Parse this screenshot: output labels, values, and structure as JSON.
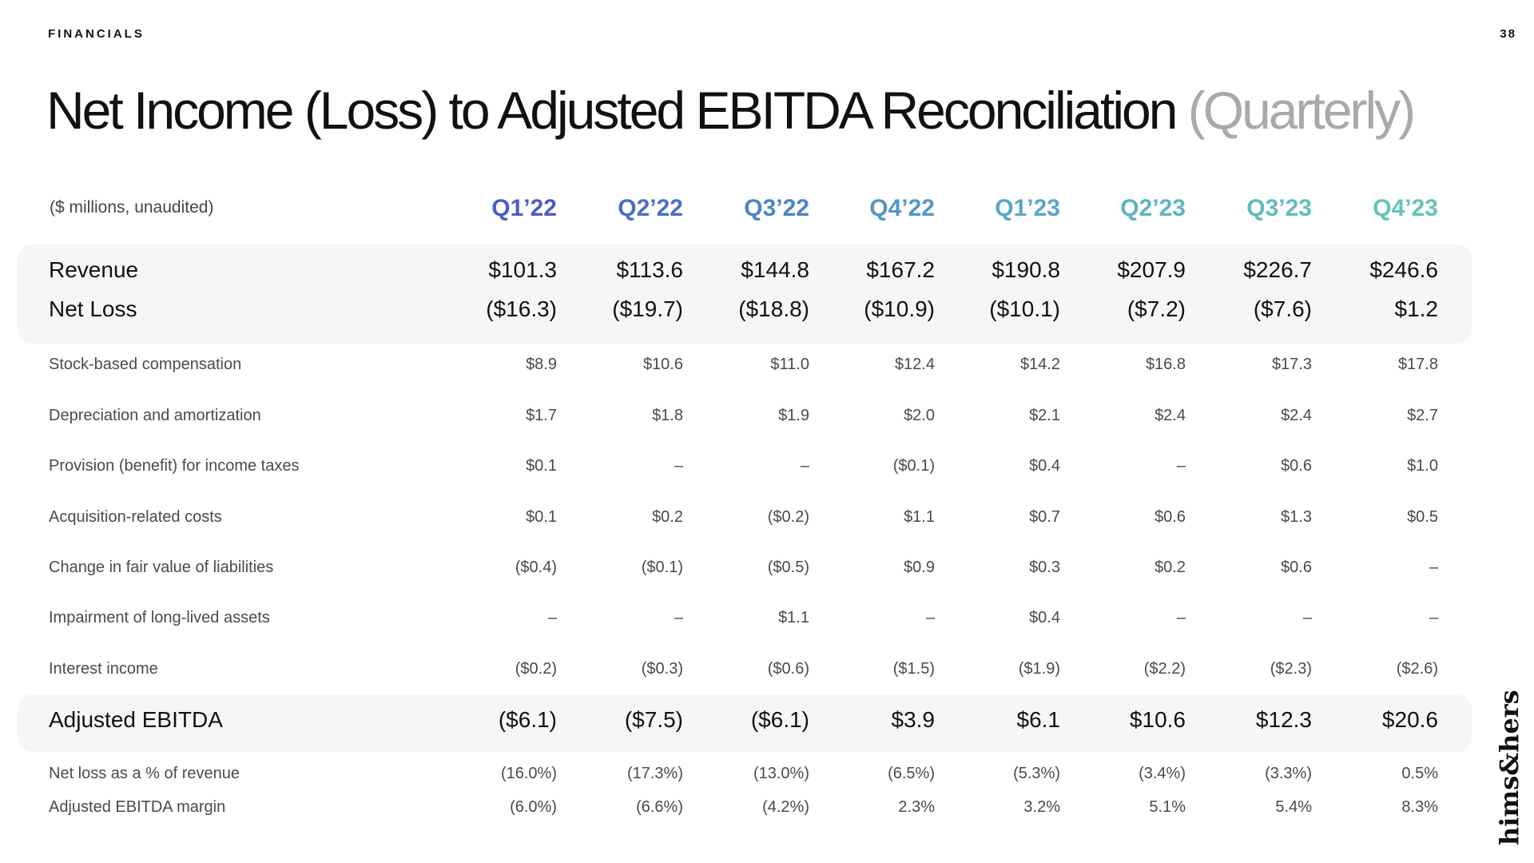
{
  "header": {
    "section_label": "FINANCIALS",
    "page_number": "38"
  },
  "title": {
    "main": "Net Income (Loss) to Adjusted EBITDA Reconciliation",
    "suffix": "(Quarterly)"
  },
  "table": {
    "units_note": "($ millions, unaudited)",
    "columns": [
      {
        "label": "Q1’22",
        "color": "#4a5ec4"
      },
      {
        "label": "Q2’22",
        "color": "#4a6fc4"
      },
      {
        "label": "Q3’22",
        "color": "#4b84c6"
      },
      {
        "label": "Q4’22",
        "color": "#5496c6"
      },
      {
        "label": "Q1’23",
        "color": "#5aa6c4"
      },
      {
        "label": "Q2’23",
        "color": "#5fb3c2"
      },
      {
        "label": "Q3’23",
        "color": "#63bcbe"
      },
      {
        "label": "Q4’23",
        "color": "#67c3b6"
      }
    ],
    "rows": [
      {
        "label": "Revenue",
        "style": "big",
        "values": [
          "$101.3",
          "$113.6",
          "$144.8",
          "$167.2",
          "$190.8",
          "$207.9",
          "$226.7",
          "$246.6"
        ]
      },
      {
        "label": "Net Loss",
        "style": "big",
        "values": [
          "($16.3)",
          "($19.7)",
          "($18.8)",
          "($10.9)",
          "($10.1)",
          "($7.2)",
          "($7.6)",
          "$1.2"
        ]
      },
      {
        "label": "Stock-based compensation",
        "style": "small",
        "values": [
          "$8.9",
          "$10.6",
          "$11.0",
          "$12.4",
          "$14.2",
          "$16.8",
          "$17.3",
          "$17.8"
        ]
      },
      {
        "label": "Depreciation and amortization",
        "style": "small",
        "values": [
          "$1.7",
          "$1.8",
          "$1.9",
          "$2.0",
          "$2.1",
          "$2.4",
          "$2.4",
          "$2.7"
        ]
      },
      {
        "label": "Provision (benefit) for income taxes",
        "style": "small",
        "values": [
          "$0.1",
          "–",
          "–",
          "($0.1)",
          "$0.4",
          "–",
          "$0.6",
          "$1.0"
        ]
      },
      {
        "label": "Acquisition-related costs",
        "style": "small",
        "values": [
          "$0.1",
          "$0.2",
          "($0.2)",
          "$1.1",
          "$0.7",
          "$0.6",
          "$1.3",
          "$0.5"
        ]
      },
      {
        "label": "Change in fair value of liabilities",
        "style": "small",
        "values": [
          "($0.4)",
          "($0.1)",
          "($0.5)",
          "$0.9",
          "$0.3",
          "$0.2",
          "$0.6",
          "–"
        ]
      },
      {
        "label": "Impairment of long-lived assets",
        "style": "small",
        "values": [
          "–",
          "–",
          "$1.1",
          "–",
          "$0.4",
          "–",
          "–",
          "–"
        ]
      },
      {
        "label": "Interest income",
        "style": "small",
        "values": [
          "($0.2)",
          "($0.3)",
          "($0.6)",
          "($1.5)",
          "($1.9)",
          "($2.2)",
          "($2.3)",
          "($2.6)"
        ]
      },
      {
        "label": "Adjusted EBITDA",
        "style": "big",
        "values": [
          "($6.1)",
          "($7.5)",
          "($6.1)",
          "$3.9",
          "$6.1",
          "$10.6",
          "$12.3",
          "$20.6"
        ]
      },
      {
        "label": "Net loss as a % of revenue",
        "style": "small",
        "values": [
          "(16.0%)",
          "(17.3%)",
          "(13.0%)",
          "(6.5%)",
          "(5.3%)",
          "(3.4%)",
          "(3.3%)",
          "0.5%"
        ]
      },
      {
        "label": "Adjusted EBITDA margin",
        "style": "small",
        "values": [
          "(6.0%)",
          "(6.6%)",
          "(4.2%)",
          "2.3%",
          "3.2%",
          "5.1%",
          "5.4%",
          "8.3%"
        ]
      }
    ]
  },
  "logo": {
    "text": "hims&hers",
    "icon": "hims-and-hers-wordmark"
  }
}
